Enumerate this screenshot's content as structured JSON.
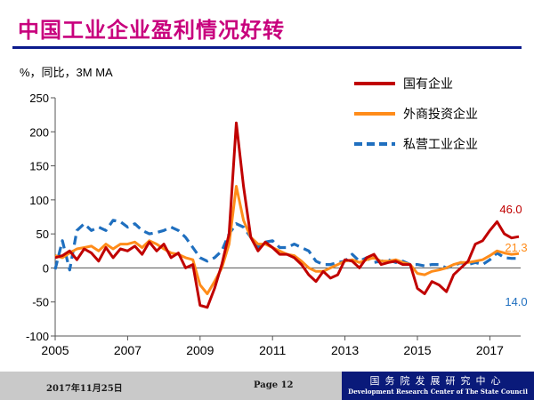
{
  "slide": {
    "title": "中国工业企业盈利情况好转",
    "footer_date": "2017年11月25日",
    "footer_page": "Page 12",
    "footer_org_cn": "国务院发展研究中心",
    "footer_org_en": "Development Research Center of The State Council"
  },
  "chart_data": {
    "type": "line",
    "title": "",
    "ylabel": "%，同比，3M MA",
    "xlim": [
      2005,
      2017.85
    ],
    "ylim": [
      -100,
      250
    ],
    "yticks": [
      -100,
      -50,
      0,
      50,
      100,
      150,
      200,
      250
    ],
    "xticks": [
      2005,
      2007,
      2009,
      2011,
      2013,
      2015,
      2017
    ],
    "legend_position": "top-right",
    "end_labels": [
      {
        "text": "46.0",
        "series": "国有企业"
      },
      {
        "text": "21.3",
        "series": "外商投资企业"
      },
      {
        "text": "14.0",
        "series": "私营工业企业"
      }
    ],
    "series": [
      {
        "name": "国有企业",
        "color": "#C00000",
        "dash": false,
        "points": [
          [
            2005.0,
            15
          ],
          [
            2005.2,
            18
          ],
          [
            2005.4,
            25
          ],
          [
            2005.6,
            12
          ],
          [
            2005.8,
            28
          ],
          [
            2006.0,
            22
          ],
          [
            2006.2,
            10
          ],
          [
            2006.4,
            30
          ],
          [
            2006.6,
            15
          ],
          [
            2006.8,
            28
          ],
          [
            2007.0,
            25
          ],
          [
            2007.2,
            32
          ],
          [
            2007.4,
            20
          ],
          [
            2007.6,
            38
          ],
          [
            2007.8,
            25
          ],
          [
            2008.0,
            35
          ],
          [
            2008.2,
            15
          ],
          [
            2008.4,
            22
          ],
          [
            2008.6,
            0
          ],
          [
            2008.8,
            5
          ],
          [
            2009.0,
            -55
          ],
          [
            2009.2,
            -58
          ],
          [
            2009.4,
            -30
          ],
          [
            2009.6,
            5
          ],
          [
            2009.8,
            50
          ],
          [
            2010.0,
            213
          ],
          [
            2010.2,
            120
          ],
          [
            2010.4,
            45
          ],
          [
            2010.6,
            25
          ],
          [
            2010.8,
            38
          ],
          [
            2011.0,
            30
          ],
          [
            2011.2,
            20
          ],
          [
            2011.4,
            20
          ],
          [
            2011.6,
            15
          ],
          [
            2011.8,
            5
          ],
          [
            2012.0,
            -10
          ],
          [
            2012.2,
            -20
          ],
          [
            2012.4,
            -5
          ],
          [
            2012.6,
            -15
          ],
          [
            2012.8,
            -10
          ],
          [
            2013.0,
            12
          ],
          [
            2013.2,
            10
          ],
          [
            2013.4,
            0
          ],
          [
            2013.6,
            15
          ],
          [
            2013.8,
            20
          ],
          [
            2014.0,
            5
          ],
          [
            2014.2,
            8
          ],
          [
            2014.4,
            10
          ],
          [
            2014.6,
            5
          ],
          [
            2014.8,
            5
          ],
          [
            2015.0,
            -30
          ],
          [
            2015.2,
            -38
          ],
          [
            2015.4,
            -20
          ],
          [
            2015.6,
            -25
          ],
          [
            2015.8,
            -35
          ],
          [
            2016.0,
            -10
          ],
          [
            2016.2,
            0
          ],
          [
            2016.4,
            10
          ],
          [
            2016.6,
            35
          ],
          [
            2016.8,
            40
          ],
          [
            2017.0,
            55
          ],
          [
            2017.2,
            68
          ],
          [
            2017.4,
            50
          ],
          [
            2017.6,
            44
          ],
          [
            2017.8,
            46
          ]
        ]
      },
      {
        "name": "外商投资企业",
        "color": "#FF8C1A",
        "dash": false,
        "points": [
          [
            2005.0,
            18
          ],
          [
            2005.2,
            15
          ],
          [
            2005.4,
            22
          ],
          [
            2005.6,
            28
          ],
          [
            2005.8,
            30
          ],
          [
            2006.0,
            32
          ],
          [
            2006.2,
            25
          ],
          [
            2006.4,
            35
          ],
          [
            2006.6,
            28
          ],
          [
            2006.8,
            35
          ],
          [
            2007.0,
            35
          ],
          [
            2007.2,
            38
          ],
          [
            2007.4,
            30
          ],
          [
            2007.6,
            40
          ],
          [
            2007.8,
            35
          ],
          [
            2008.0,
            28
          ],
          [
            2008.2,
            22
          ],
          [
            2008.4,
            20
          ],
          [
            2008.6,
            15
          ],
          [
            2008.8,
            12
          ],
          [
            2009.0,
            -25
          ],
          [
            2009.2,
            -38
          ],
          [
            2009.4,
            -20
          ],
          [
            2009.6,
            0
          ],
          [
            2009.8,
            35
          ],
          [
            2010.0,
            120
          ],
          [
            2010.2,
            70
          ],
          [
            2010.4,
            45
          ],
          [
            2010.6,
            35
          ],
          [
            2010.8,
            35
          ],
          [
            2011.0,
            30
          ],
          [
            2011.2,
            25
          ],
          [
            2011.4,
            20
          ],
          [
            2011.6,
            18
          ],
          [
            2011.8,
            10
          ],
          [
            2012.0,
            0
          ],
          [
            2012.2,
            -5
          ],
          [
            2012.4,
            -5
          ],
          [
            2012.6,
            0
          ],
          [
            2012.8,
            5
          ],
          [
            2013.0,
            10
          ],
          [
            2013.2,
            12
          ],
          [
            2013.4,
            8
          ],
          [
            2013.6,
            12
          ],
          [
            2013.8,
            15
          ],
          [
            2014.0,
            10
          ],
          [
            2014.2,
            10
          ],
          [
            2014.4,
            12
          ],
          [
            2014.6,
            8
          ],
          [
            2014.8,
            5
          ],
          [
            2015.0,
            -8
          ],
          [
            2015.2,
            -10
          ],
          [
            2015.4,
            -5
          ],
          [
            2015.6,
            -3
          ],
          [
            2015.8,
            0
          ],
          [
            2016.0,
            5
          ],
          [
            2016.2,
            8
          ],
          [
            2016.4,
            8
          ],
          [
            2016.6,
            10
          ],
          [
            2016.8,
            12
          ],
          [
            2017.0,
            18
          ],
          [
            2017.2,
            25
          ],
          [
            2017.4,
            22
          ],
          [
            2017.6,
            20
          ],
          [
            2017.8,
            21
          ]
        ]
      },
      {
        "name": "私营工业企业",
        "color": "#1F6FBF",
        "dash": true,
        "points": [
          [
            2005.0,
            -2
          ],
          [
            2005.2,
            40
          ],
          [
            2005.4,
            -3
          ],
          [
            2005.6,
            55
          ],
          [
            2005.8,
            65
          ],
          [
            2006.0,
            55
          ],
          [
            2006.2,
            60
          ],
          [
            2006.4,
            55
          ],
          [
            2006.6,
            70
          ],
          [
            2006.8,
            68
          ],
          [
            2007.0,
            60
          ],
          [
            2007.2,
            65
          ],
          [
            2007.4,
            55
          ],
          [
            2007.6,
            50
          ],
          [
            2007.8,
            52
          ],
          [
            2008.0,
            55
          ],
          [
            2008.2,
            60
          ],
          [
            2008.4,
            55
          ],
          [
            2008.6,
            45
          ],
          [
            2008.8,
            30
          ],
          [
            2009.0,
            15
          ],
          [
            2009.2,
            10
          ],
          [
            2009.4,
            15
          ],
          [
            2009.6,
            25
          ],
          [
            2009.8,
            50
          ],
          [
            2010.0,
            65
          ],
          [
            2010.2,
            60
          ],
          [
            2010.4,
            45
          ],
          [
            2010.6,
            30
          ],
          [
            2010.8,
            38
          ],
          [
            2011.0,
            40
          ],
          [
            2011.2,
            30
          ],
          [
            2011.4,
            30
          ],
          [
            2011.6,
            35
          ],
          [
            2011.8,
            30
          ],
          [
            2012.0,
            25
          ],
          [
            2012.2,
            10
          ],
          [
            2012.4,
            5
          ],
          [
            2012.6,
            5
          ],
          [
            2012.8,
            8
          ],
          [
            2013.0,
            10
          ],
          [
            2013.2,
            20
          ],
          [
            2013.4,
            10
          ],
          [
            2013.6,
            15
          ],
          [
            2013.8,
            8
          ],
          [
            2014.0,
            10
          ],
          [
            2014.2,
            12
          ],
          [
            2014.4,
            8
          ],
          [
            2014.6,
            10
          ],
          [
            2014.8,
            5
          ],
          [
            2015.0,
            5
          ],
          [
            2015.2,
            3
          ],
          [
            2015.4,
            5
          ],
          [
            2015.6,
            5
          ],
          [
            2015.8,
            0
          ],
          [
            2016.0,
            3
          ],
          [
            2016.2,
            8
          ],
          [
            2016.4,
            5
          ],
          [
            2016.6,
            8
          ],
          [
            2016.8,
            5
          ],
          [
            2017.0,
            12
          ],
          [
            2017.2,
            22
          ],
          [
            2017.4,
            15
          ],
          [
            2017.6,
            14
          ],
          [
            2017.8,
            14
          ]
        ]
      }
    ]
  }
}
